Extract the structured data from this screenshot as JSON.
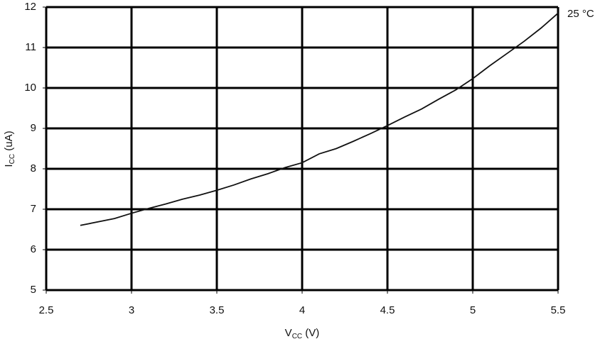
{
  "chart_data": {
    "type": "line",
    "xlabel": [
      "V",
      "CC",
      " (V)"
    ],
    "ylabel": [
      "I",
      "CC",
      " (uA)"
    ],
    "x": [
      2.7,
      2.9,
      3.0,
      3.1,
      3.2,
      3.3,
      3.4,
      3.5,
      3.6,
      3.7,
      3.8,
      3.9,
      4.0,
      4.1,
      4.2,
      4.3,
      4.4,
      4.5,
      4.6,
      4.7,
      4.8,
      4.9,
      5.0,
      5.1,
      5.2,
      5.3,
      5.4,
      5.5
    ],
    "series": [
      {
        "name": "25 °C",
        "color": "#111111",
        "values": [
          6.6,
          6.77,
          6.9,
          7.02,
          7.13,
          7.25,
          7.35,
          7.47,
          7.6,
          7.75,
          7.88,
          8.03,
          8.15,
          8.37,
          8.5,
          8.68,
          8.87,
          9.07,
          9.28,
          9.48,
          9.72,
          9.95,
          10.23,
          10.55,
          10.85,
          11.15,
          11.48,
          11.85
        ]
      }
    ],
    "xlim": [
      2.5,
      5.5
    ],
    "xticks": [
      2.5,
      3,
      3.5,
      4,
      4.5,
      5,
      5.5
    ],
    "ylim": [
      5,
      12
    ],
    "yticks": [
      5,
      6,
      7,
      8,
      9,
      10,
      11,
      12
    ],
    "grid": true
  }
}
